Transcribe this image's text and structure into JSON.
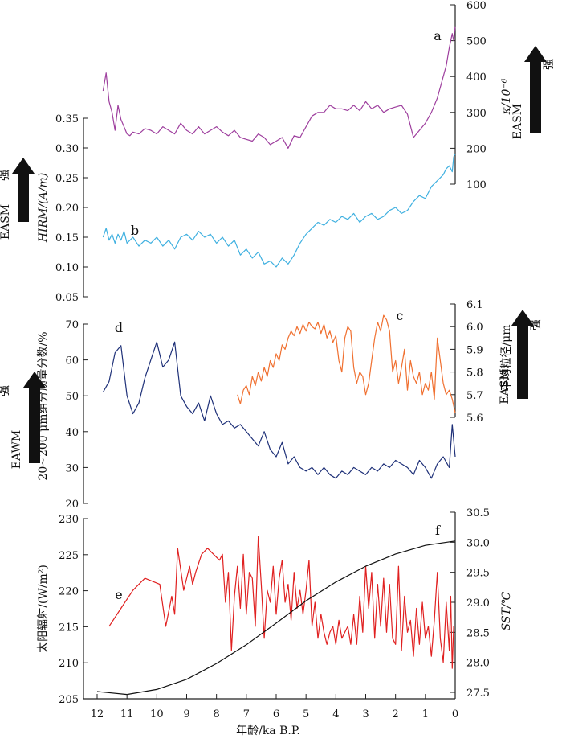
{
  "chart_data": [
    {
      "type": "line",
      "id": "panel-top",
      "left_axis": {
        "label": "HIRM/(A/m)",
        "ticks": [
          "0.35",
          "0.30",
          "0.25",
          "0.20",
          "0.15",
          "0.10",
          "0.05"
        ],
        "ylim": [
          0.05,
          0.375
        ]
      },
      "right_axis": {
        "label": "κ/10⁻⁶",
        "ticks": [
          "600",
          "500",
          "400",
          "300",
          "200",
          "100"
        ],
        "ylim": [
          100,
          600
        ]
      },
      "left_indicator": {
        "text": "EASM",
        "arrow": "强"
      },
      "right_indicator": {
        "text": "EASM",
        "arrow": "强"
      },
      "series": [
        {
          "letter": "a",
          "name": "κ",
          "axis": "right",
          "color": "#9e3f9e",
          "x": [
            11.8,
            11.7,
            11.6,
            11.5,
            11.4,
            11.3,
            11.2,
            11.1,
            11.0,
            10.9,
            10.8,
            10.6,
            10.4,
            10.2,
            10.0,
            9.8,
            9.6,
            9.4,
            9.2,
            9.0,
            8.8,
            8.6,
            8.4,
            8.2,
            8.0,
            7.8,
            7.6,
            7.4,
            7.2,
            7.0,
            6.8,
            6.6,
            6.4,
            6.2,
            6.0,
            5.8,
            5.6,
            5.4,
            5.2,
            5.0,
            4.8,
            4.6,
            4.4,
            4.2,
            4.0,
            3.8,
            3.6,
            3.4,
            3.2,
            3.0,
            2.8,
            2.6,
            2.4,
            2.2,
            2.0,
            1.8,
            1.6,
            1.4,
            1.2,
            1.0,
            0.8,
            0.6,
            0.4,
            0.3,
            0.2,
            0.1,
            0.05,
            0.0
          ],
          "y": [
            360,
            410,
            330,
            300,
            250,
            320,
            280,
            260,
            240,
            235,
            245,
            240,
            255,
            250,
            240,
            260,
            250,
            240,
            270,
            250,
            240,
            260,
            240,
            250,
            260,
            245,
            235,
            250,
            230,
            225,
            220,
            240,
            230,
            210,
            220,
            230,
            200,
            235,
            230,
            260,
            290,
            300,
            300,
            320,
            310,
            310,
            305,
            320,
            305,
            330,
            310,
            320,
            300,
            310,
            315,
            320,
            295,
            230,
            250,
            270,
            300,
            340,
            400,
            430,
            480,
            520,
            500,
            540
          ]
        },
        {
          "letter": "b",
          "name": "HIRM",
          "axis": "left",
          "color": "#3fb0e0",
          "x": [
            11.8,
            11.7,
            11.6,
            11.5,
            11.4,
            11.3,
            11.2,
            11.1,
            11.0,
            10.8,
            10.6,
            10.4,
            10.2,
            10.0,
            9.8,
            9.6,
            9.4,
            9.2,
            9.0,
            8.8,
            8.6,
            8.4,
            8.2,
            8.0,
            7.8,
            7.6,
            7.4,
            7.2,
            7.0,
            6.8,
            6.6,
            6.4,
            6.2,
            6.0,
            5.8,
            5.6,
            5.4,
            5.2,
            5.0,
            4.8,
            4.6,
            4.4,
            4.2,
            4.0,
            3.8,
            3.6,
            3.4,
            3.2,
            3.0,
            2.8,
            2.6,
            2.4,
            2.2,
            2.0,
            1.8,
            1.6,
            1.4,
            1.2,
            1.0,
            0.8,
            0.6,
            0.4,
            0.3,
            0.2,
            0.1,
            0.05,
            0.0
          ],
          "y": [
            0.15,
            0.165,
            0.145,
            0.155,
            0.14,
            0.155,
            0.145,
            0.16,
            0.14,
            0.15,
            0.135,
            0.145,
            0.14,
            0.15,
            0.135,
            0.145,
            0.13,
            0.15,
            0.155,
            0.145,
            0.16,
            0.15,
            0.155,
            0.14,
            0.15,
            0.135,
            0.145,
            0.12,
            0.13,
            0.115,
            0.125,
            0.105,
            0.11,
            0.1,
            0.115,
            0.105,
            0.12,
            0.14,
            0.155,
            0.165,
            0.175,
            0.17,
            0.18,
            0.175,
            0.185,
            0.18,
            0.19,
            0.175,
            0.185,
            0.19,
            0.18,
            0.185,
            0.195,
            0.2,
            0.19,
            0.195,
            0.21,
            0.22,
            0.215,
            0.235,
            0.245,
            0.255,
            0.265,
            0.27,
            0.26,
            0.285,
            0.29
          ]
        }
      ]
    },
    {
      "type": "line",
      "id": "panel-mid",
      "left_axis": {
        "label": "20~200 μm组分质量分数/%",
        "ticks": [
          "70",
          "60",
          "50",
          "40",
          "30",
          "20"
        ],
        "ylim": [
          20,
          72
        ]
      },
      "right_axis": {
        "label": "平均粒径/μm",
        "ticks": [
          "6.1",
          "6.0",
          "5.9",
          "5.8",
          "5.7",
          "5.6"
        ],
        "ylim": [
          5.6,
          6.1
        ]
      },
      "left_indicator": {
        "text": "EAWM",
        "arrow": "强"
      },
      "right_indicator": {
        "text": "EASM",
        "arrow": "强"
      },
      "series": [
        {
          "letter": "c",
          "name": "平均粒径",
          "axis": "right",
          "color": "#f07030",
          "x": [
            7.3,
            7.2,
            7.1,
            7.0,
            6.9,
            6.8,
            6.7,
            6.6,
            6.5,
            6.4,
            6.3,
            6.2,
            6.1,
            6.0,
            5.9,
            5.8,
            5.7,
            5.6,
            5.5,
            5.4,
            5.3,
            5.2,
            5.1,
            5.0,
            4.9,
            4.8,
            4.7,
            4.6,
            4.5,
            4.4,
            4.3,
            4.2,
            4.1,
            4.0,
            3.9,
            3.8,
            3.7,
            3.6,
            3.5,
            3.4,
            3.3,
            3.2,
            3.1,
            3.0,
            2.9,
            2.8,
            2.7,
            2.6,
            2.5,
            2.4,
            2.3,
            2.2,
            2.1,
            2.0,
            1.9,
            1.8,
            1.7,
            1.6,
            1.5,
            1.4,
            1.3,
            1.2,
            1.1,
            1.0,
            0.9,
            0.8,
            0.7,
            0.6,
            0.5,
            0.4,
            0.3,
            0.2,
            0.1,
            0.0
          ],
          "y": [
            5.7,
            5.66,
            5.72,
            5.74,
            5.7,
            5.78,
            5.74,
            5.8,
            5.76,
            5.82,
            5.78,
            5.85,
            5.82,
            5.88,
            5.85,
            5.92,
            5.9,
            5.95,
            5.98,
            5.96,
            6.0,
            5.97,
            6.01,
            5.98,
            6.02,
            6.0,
            5.99,
            6.02,
            5.97,
            6.01,
            5.95,
            5.98,
            5.93,
            5.96,
            5.85,
            5.8,
            5.95,
            6.0,
            5.98,
            5.82,
            5.75,
            5.8,
            5.78,
            5.7,
            5.75,
            5.85,
            5.95,
            6.02,
            5.98,
            6.05,
            6.03,
            5.98,
            5.8,
            5.85,
            5.75,
            5.82,
            5.9,
            5.72,
            5.85,
            5.78,
            5.75,
            5.8,
            5.7,
            5.75,
            5.72,
            5.8,
            5.68,
            5.95,
            5.85,
            5.75,
            5.7,
            5.72,
            5.68,
            5.62
          ]
        },
        {
          "letter": "d",
          "name": "20~200 μm组分质量分数",
          "axis": "left",
          "color": "#1e3078",
          "x": [
            11.8,
            11.6,
            11.4,
            11.2,
            11.0,
            10.8,
            10.6,
            10.4,
            10.2,
            10.0,
            9.8,
            9.6,
            9.4,
            9.2,
            9.0,
            8.8,
            8.6,
            8.4,
            8.2,
            8.0,
            7.8,
            7.6,
            7.4,
            7.2,
            7.0,
            6.8,
            6.6,
            6.4,
            6.2,
            6.0,
            5.8,
            5.6,
            5.4,
            5.2,
            5.0,
            4.8,
            4.6,
            4.4,
            4.2,
            4.0,
            3.8,
            3.6,
            3.4,
            3.2,
            3.0,
            2.8,
            2.6,
            2.4,
            2.2,
            2.0,
            1.8,
            1.6,
            1.4,
            1.2,
            1.0,
            0.8,
            0.6,
            0.4,
            0.2,
            0.1,
            0.0
          ],
          "y": [
            51,
            54,
            62,
            64,
            50,
            45,
            48,
            55,
            60,
            65,
            58,
            60,
            65,
            50,
            47,
            45,
            48,
            43,
            50,
            45,
            42,
            43,
            41,
            42,
            40,
            38,
            36,
            40,
            35,
            33,
            37,
            31,
            33,
            30,
            29,
            30,
            28,
            30,
            28,
            27,
            29,
            28,
            30,
            29,
            28,
            30,
            29,
            31,
            30,
            32,
            31,
            30,
            28,
            32,
            30,
            27,
            31,
            33,
            30,
            42,
            33
          ]
        }
      ]
    },
    {
      "type": "line",
      "id": "panel-bot",
      "left_axis": {
        "label": "太阳辐射/(W/m²)",
        "ticks": [
          "230",
          "225",
          "220",
          "215",
          "210",
          "205"
        ],
        "ylim": [
          205,
          230
        ]
      },
      "right_axis": {
        "label": "SST/℃",
        "ticks": [
          "30.5",
          "30.0",
          "29.5",
          "29.0",
          "28.5",
          "28.0",
          "27.5"
        ],
        "ylim": [
          27.5,
          30.5
        ]
      },
      "xaxis": {
        "label": "年龄/ka B.P.",
        "ticks": [
          "12",
          "11",
          "10",
          "9",
          "8",
          "7",
          "6",
          "5",
          "4",
          "3",
          "2",
          "1",
          "0"
        ],
        "xlim": [
          12.2,
          -0.05
        ]
      },
      "series": [
        {
          "letter": "e",
          "name": "SST",
          "axis": "right",
          "color": "#e02020",
          "x": [
            11.6,
            11.2,
            10.8,
            10.4,
            9.9,
            9.7,
            9.5,
            9.4,
            9.3,
            9.1,
            8.9,
            8.8,
            8.7,
            8.5,
            8.3,
            8.1,
            7.9,
            7.8,
            7.7,
            7.6,
            7.5,
            7.4,
            7.3,
            7.2,
            7.1,
            7.0,
            6.9,
            6.8,
            6.7,
            6.6,
            6.5,
            6.4,
            6.3,
            6.2,
            6.1,
            6.0,
            5.9,
            5.8,
            5.7,
            5.6,
            5.5,
            5.4,
            5.3,
            5.2,
            5.1,
            5.0,
            4.9,
            4.8,
            4.7,
            4.6,
            4.5,
            4.4,
            4.3,
            4.2,
            4.1,
            4.0,
            3.9,
            3.8,
            3.7,
            3.6,
            3.5,
            3.4,
            3.3,
            3.2,
            3.1,
            3.0,
            2.9,
            2.8,
            2.7,
            2.6,
            2.5,
            2.4,
            2.3,
            2.2,
            2.1,
            2.0,
            1.9,
            1.8,
            1.7,
            1.6,
            1.5,
            1.4,
            1.3,
            1.2,
            1.1,
            1.0,
            0.9,
            0.8,
            0.7,
            0.6,
            0.5,
            0.4,
            0.3,
            0.2,
            0.15,
            0.1,
            0.05
          ],
          "y": [
            28.6,
            28.9,
            29.2,
            29.4,
            29.3,
            28.6,
            29.1,
            28.8,
            29.9,
            29.2,
            29.6,
            29.3,
            29.5,
            29.8,
            29.9,
            29.8,
            29.7,
            29.8,
            29.0,
            29.5,
            28.2,
            29.1,
            29.6,
            28.9,
            29.8,
            28.8,
            29.5,
            29.4,
            28.6,
            30.1,
            29.3,
            28.4,
            29.2,
            29.0,
            29.6,
            28.8,
            29.4,
            29.7,
            29.0,
            29.3,
            28.7,
            29.5,
            28.9,
            29.2,
            28.8,
            29.2,
            29.7,
            28.6,
            29.0,
            28.4,
            28.8,
            28.5,
            28.3,
            28.5,
            28.6,
            28.3,
            28.7,
            28.4,
            28.5,
            28.6,
            28.3,
            28.8,
            28.3,
            29.1,
            28.5,
            29.6,
            28.9,
            29.5,
            28.4,
            29.3,
            28.6,
            29.4,
            28.5,
            29.3,
            28.4,
            28.3,
            29.6,
            28.2,
            29.1,
            28.5,
            28.7,
            28.1,
            28.9,
            28.3,
            29.0,
            28.4,
            28.6,
            28.1,
            28.7,
            29.5,
            28.4,
            28.0,
            29.0,
            28.2,
            29.1,
            27.9,
            28.6
          ]
        },
        {
          "letter": "f",
          "name": "太阳辐射",
          "axis": "left",
          "color": "#111111",
          "x": [
            12,
            11,
            10,
            9,
            8,
            7,
            6,
            5,
            4,
            3,
            2,
            1,
            0
          ],
          "y": [
            206.0,
            205.6,
            206.3,
            207.7,
            209.9,
            212.5,
            215.5,
            218.6,
            221.2,
            223.4,
            225.1,
            226.3,
            226.9
          ]
        }
      ]
    }
  ]
}
